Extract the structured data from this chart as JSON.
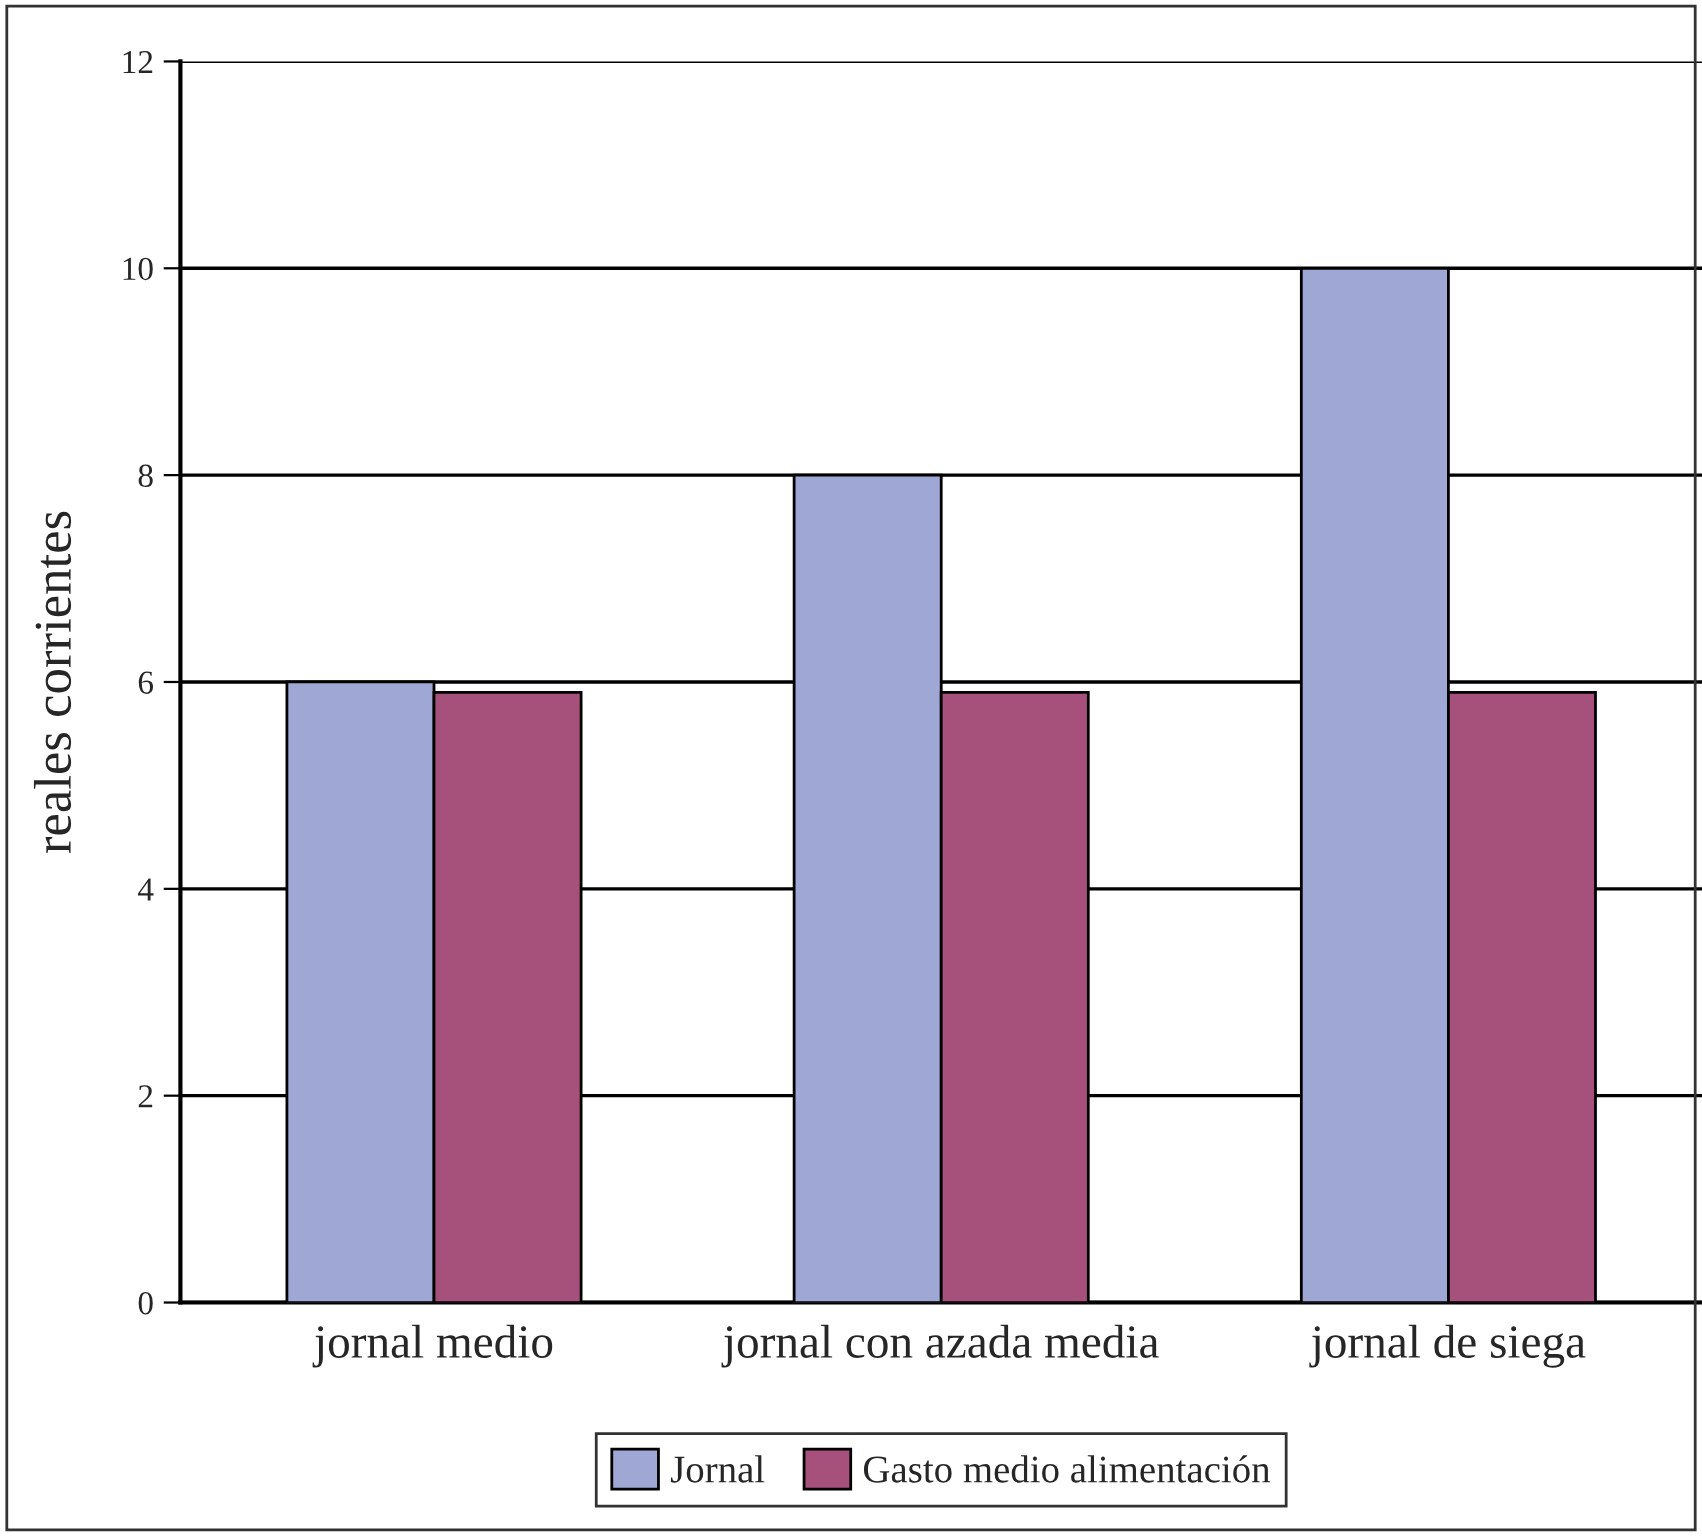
{
  "chart_data": {
    "type": "bar",
    "ylabel": "reales corrientes",
    "categories": [
      "jornal medio",
      "jornal con azada media",
      "jornal de siega"
    ],
    "series": [
      {
        "name": "Jornal",
        "color": "#9fa8d4",
        "values": [
          6,
          8,
          10
        ]
      },
      {
        "name": "Gasto medio alimentación",
        "color": "#a6507c",
        "values": [
          5.9,
          5.9,
          5.9
        ]
      }
    ],
    "ylim": [
      0,
      12
    ],
    "yticks": [
      0,
      2,
      4,
      6,
      8,
      10,
      12
    ],
    "grid": "y",
    "legend": "bottom"
  }
}
